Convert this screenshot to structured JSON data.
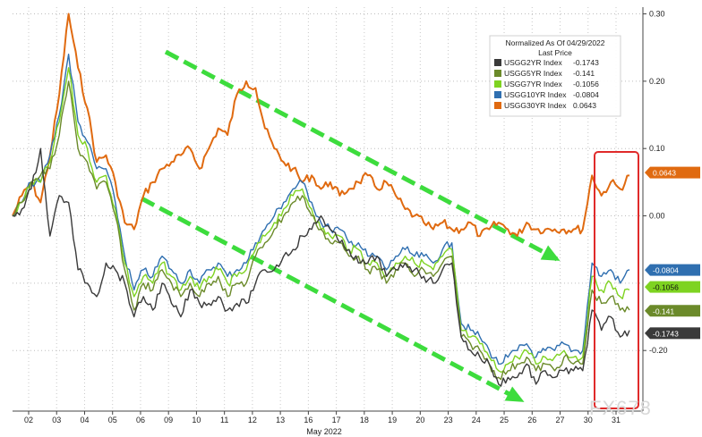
{
  "chart_data": {
    "type": "line",
    "xlabel": "May 2022",
    "x_ticks": [
      "02",
      "03",
      "04",
      "05",
      "06",
      "09",
      "10",
      "11",
      "12",
      "13",
      "16",
      "17",
      "18",
      "19",
      "20",
      "23",
      "24",
      "25",
      "26",
      "27",
      "30",
      "31"
    ],
    "y_ticks": [
      0.3,
      0.2,
      0.1,
      0.0,
      -0.2
    ],
    "y_tick_labels": [
      "0.30",
      "0.20",
      "0.10",
      "0.00",
      "-0.20"
    ],
    "ylim": [
      -0.29,
      0.31
    ],
    "grid": true,
    "legend": {
      "placement": "top-right",
      "title_line1": "Normalized As Of 04/29/2022",
      "title_line2": "Last Price"
    },
    "series": [
      {
        "name": "USGG2YR Index",
        "last": -0.1743,
        "last_label": "-0.1743",
        "color": "#3a3a3a",
        "values": [
          0.0,
          0.01,
          0.04,
          0.1,
          -0.03,
          0.03,
          0.02,
          -0.08,
          -0.1,
          -0.12,
          -0.07,
          -0.08,
          -0.1,
          -0.15,
          -0.12,
          -0.14,
          -0.1,
          -0.13,
          -0.15,
          -0.11,
          -0.13,
          -0.13,
          -0.12,
          -0.14,
          -0.13,
          -0.13,
          -0.1,
          -0.08,
          -0.08,
          -0.06,
          -0.05,
          -0.03,
          -0.02,
          0.0,
          -0.02,
          -0.04,
          -0.05,
          -0.07,
          -0.07,
          -0.06,
          -0.09,
          -0.08,
          -0.07,
          -0.08,
          -0.09,
          -0.1,
          -0.08,
          -0.07,
          -0.18,
          -0.2,
          -0.21,
          -0.22,
          -0.25,
          -0.24,
          -0.24,
          -0.22,
          -0.25,
          -0.23,
          -0.24,
          -0.23,
          -0.23,
          -0.23,
          -0.14,
          -0.17,
          -0.15,
          -0.18,
          -0.17
        ]
      },
      {
        "name": "USGG5YR Index",
        "last": -0.141,
        "last_label": "-0.141",
        "color": "#6b8a2a",
        "values": [
          0.0,
          0.02,
          0.05,
          0.06,
          0.07,
          0.12,
          0.2,
          0.1,
          0.08,
          0.04,
          0.05,
          0.0,
          -0.08,
          -0.14,
          -0.1,
          -0.11,
          -0.08,
          -0.1,
          -0.12,
          -0.1,
          -0.12,
          -0.1,
          -0.09,
          -0.12,
          -0.1,
          -0.1,
          -0.06,
          -0.04,
          -0.02,
          0.0,
          0.02,
          0.03,
          0.0,
          -0.02,
          -0.04,
          -0.04,
          -0.06,
          -0.06,
          -0.08,
          -0.08,
          -0.1,
          -0.08,
          -0.07,
          -0.09,
          -0.08,
          -0.09,
          -0.07,
          -0.06,
          -0.18,
          -0.19,
          -0.2,
          -0.22,
          -0.24,
          -0.23,
          -0.22,
          -0.21,
          -0.23,
          -0.22,
          -0.23,
          -0.21,
          -0.22,
          -0.22,
          -0.11,
          -0.13,
          -0.12,
          -0.14,
          -0.14
        ]
      },
      {
        "name": "USGG7YR Index",
        "last": -0.1056,
        "last_label": "-0.1056",
        "color": "#7ed321",
        "values": [
          0.0,
          0.02,
          0.05,
          0.05,
          0.08,
          0.14,
          0.22,
          0.12,
          0.1,
          0.05,
          0.06,
          0.01,
          -0.07,
          -0.12,
          -0.09,
          -0.1,
          -0.07,
          -0.09,
          -0.11,
          -0.09,
          -0.11,
          -0.09,
          -0.08,
          -0.1,
          -0.09,
          -0.08,
          -0.05,
          -0.03,
          -0.01,
          0.01,
          0.03,
          0.04,
          0.01,
          -0.02,
          -0.03,
          -0.03,
          -0.05,
          -0.05,
          -0.07,
          -0.07,
          -0.09,
          -0.07,
          -0.06,
          -0.07,
          -0.07,
          -0.08,
          -0.06,
          -0.05,
          -0.17,
          -0.18,
          -0.19,
          -0.21,
          -0.23,
          -0.22,
          -0.21,
          -0.2,
          -0.22,
          -0.21,
          -0.21,
          -0.2,
          -0.21,
          -0.21,
          -0.09,
          -0.11,
          -0.1,
          -0.12,
          -0.11
        ]
      },
      {
        "name": "USGG10YR Index",
        "last": -0.0804,
        "last_label": "-0.0804",
        "color": "#2f6fb0",
        "values": [
          0.0,
          0.02,
          0.05,
          0.05,
          0.09,
          0.15,
          0.24,
          0.14,
          0.11,
          0.07,
          0.07,
          0.02,
          -0.06,
          -0.11,
          -0.08,
          -0.09,
          -0.06,
          -0.08,
          -0.1,
          -0.08,
          -0.1,
          -0.08,
          -0.07,
          -0.09,
          -0.08,
          -0.07,
          -0.04,
          -0.02,
          0.0,
          0.02,
          0.04,
          0.05,
          0.02,
          -0.01,
          -0.02,
          -0.02,
          -0.04,
          -0.04,
          -0.06,
          -0.06,
          -0.08,
          -0.06,
          -0.05,
          -0.06,
          -0.06,
          -0.07,
          -0.05,
          -0.04,
          -0.16,
          -0.17,
          -0.18,
          -0.2,
          -0.22,
          -0.21,
          -0.2,
          -0.19,
          -0.21,
          -0.2,
          -0.2,
          -0.19,
          -0.2,
          -0.2,
          -0.07,
          -0.09,
          -0.08,
          -0.1,
          -0.08
        ]
      },
      {
        "name": "USGG30YR Index",
        "last": 0.0643,
        "last_label": "0.0643",
        "color": "#e06a10",
        "values": [
          0.0,
          0.03,
          0.05,
          0.02,
          0.09,
          0.18,
          0.3,
          0.22,
          0.16,
          0.08,
          0.09,
          0.05,
          -0.01,
          -0.02,
          0.03,
          0.05,
          0.07,
          0.08,
          0.09,
          0.1,
          0.07,
          0.1,
          0.13,
          0.12,
          0.18,
          0.2,
          0.19,
          0.13,
          0.1,
          0.08,
          0.07,
          0.05,
          0.06,
          0.04,
          0.05,
          0.03,
          0.04,
          0.05,
          0.06,
          0.04,
          0.05,
          0.03,
          0.01,
          0.0,
          -0.01,
          -0.02,
          -0.01,
          -0.02,
          -0.02,
          -0.01,
          -0.03,
          -0.02,
          -0.01,
          -0.02,
          -0.03,
          -0.01,
          -0.02,
          -0.02,
          -0.02,
          -0.02,
          -0.02,
          -0.02,
          0.06,
          0.03,
          0.05,
          0.04,
          0.06
        ]
      }
    ]
  },
  "watermark": "FX678"
}
